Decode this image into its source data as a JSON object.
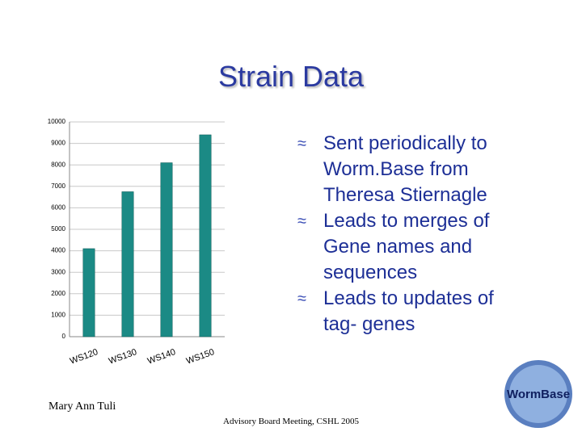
{
  "title": "Strain Data",
  "bullets": [
    "Sent periodically to Worm.Base from Theresa Stiernagle",
    "Leads to merges of Gene names and sequences",
    "Leads to updates of tag- genes"
  ],
  "bullet_symbol": "≈",
  "author": "Mary Ann Tuli",
  "footer": "Advisory Board Meeting, CSHL 2005",
  "logo": "WormBase",
  "chart_data": {
    "type": "bar",
    "categories": [
      "WS120",
      "WS130",
      "WS140",
      "WS150"
    ],
    "values": [
      4100,
      6750,
      8100,
      9400
    ],
    "color": "#1b8a85",
    "ylim": [
      0,
      10000
    ],
    "yticks": [
      0,
      1000,
      2000,
      3000,
      4000,
      5000,
      6000,
      7000,
      8000,
      9000,
      10000
    ],
    "grid": true
  }
}
